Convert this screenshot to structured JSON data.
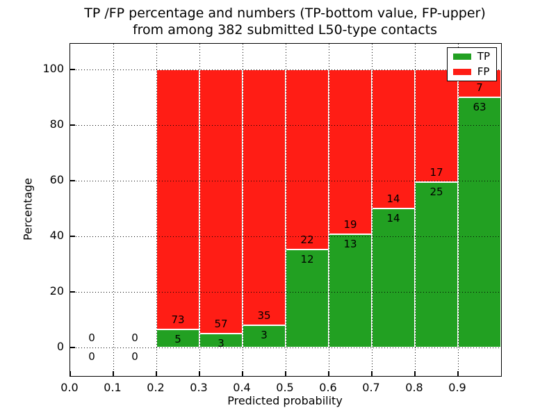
{
  "chart_data": {
    "type": "bar",
    "stacked": true,
    "title_line1": "TP /FP percentage and numbers (TP-bottom value, FP-upper)",
    "title_line2": "from among 382 submitted L50-type contacts",
    "xlabel": "Predicted probability",
    "ylabel": "Percentage",
    "xlim": [
      0.0,
      1.0
    ],
    "ylim": [
      -10.3,
      109.3
    ],
    "grid": "dotted",
    "legend_position": "upper right",
    "legend": [
      {
        "label": "TP",
        "color": "#22a022"
      },
      {
        "label": "FP",
        "color": "#ff1d15"
      }
    ],
    "x_ticks": [
      {
        "value": 0.0,
        "label": "0.0"
      },
      {
        "value": 0.1,
        "label": "0.1"
      },
      {
        "value": 0.2,
        "label": "0.2"
      },
      {
        "value": 0.3,
        "label": "0.3"
      },
      {
        "value": 0.4,
        "label": "0.4"
      },
      {
        "value": 0.5,
        "label": "0.5"
      },
      {
        "value": 0.6,
        "label": "0.6"
      },
      {
        "value": 0.7,
        "label": "0.7"
      },
      {
        "value": 0.8,
        "label": "0.8"
      },
      {
        "value": 0.9,
        "label": "0.9"
      }
    ],
    "y_ticks": [
      {
        "value": 0,
        "label": "0"
      },
      {
        "value": 20,
        "label": "20"
      },
      {
        "value": 40,
        "label": "40"
      },
      {
        "value": 60,
        "label": "60"
      },
      {
        "value": 80,
        "label": "80"
      },
      {
        "value": 100,
        "label": "100"
      }
    ],
    "bins": [
      {
        "range": [
          0.0,
          0.1
        ],
        "tp": 0,
        "fp": 0,
        "tp_pct": 0,
        "fp_pct": 0
      },
      {
        "range": [
          0.1,
          0.2
        ],
        "tp": 0,
        "fp": 0,
        "tp_pct": 0,
        "fp_pct": 0
      },
      {
        "range": [
          0.2,
          0.3
        ],
        "tp": 5,
        "fp": 73,
        "tp_pct": 6.41,
        "fp_pct": 93.59
      },
      {
        "range": [
          0.3,
          0.4
        ],
        "tp": 3,
        "fp": 57,
        "tp_pct": 5.0,
        "fp_pct": 95.0
      },
      {
        "range": [
          0.4,
          0.5
        ],
        "tp": 3,
        "fp": 35,
        "tp_pct": 7.89,
        "fp_pct": 92.11
      },
      {
        "range": [
          0.5,
          0.6
        ],
        "tp": 12,
        "fp": 22,
        "tp_pct": 35.29,
        "fp_pct": 64.71
      },
      {
        "range": [
          0.6,
          0.7
        ],
        "tp": 13,
        "fp": 19,
        "tp_pct": 40.63,
        "fp_pct": 59.37
      },
      {
        "range": [
          0.7,
          0.8
        ],
        "tp": 14,
        "fp": 14,
        "tp_pct": 50.0,
        "fp_pct": 50.0
      },
      {
        "range": [
          0.8,
          0.9
        ],
        "tp": 25,
        "fp": 17,
        "tp_pct": 59.52,
        "fp_pct": 40.48
      },
      {
        "range": [
          0.9,
          1.0
        ],
        "tp": 63,
        "fp": 7,
        "tp_pct": 90.0,
        "fp_pct": 10.0
      }
    ]
  }
}
